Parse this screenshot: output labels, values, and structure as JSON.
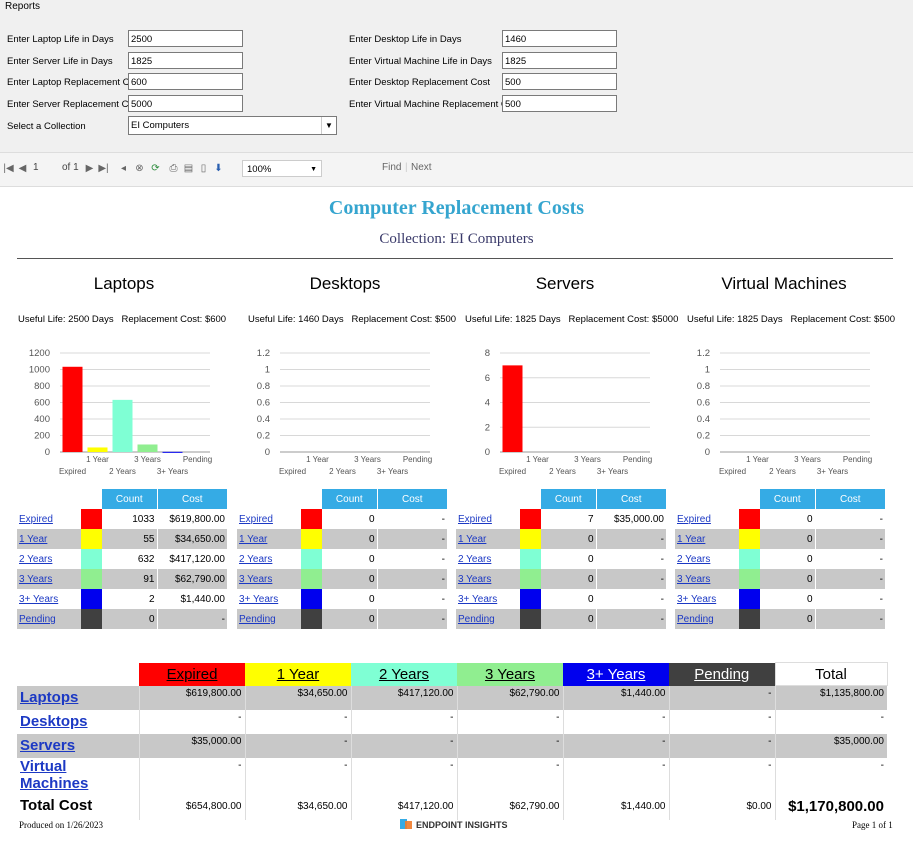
{
  "window": {
    "title": "Reports"
  },
  "params": {
    "laptop_life_label": "Enter Laptop Life in Days",
    "laptop_life_value": "2500",
    "server_life_label": "Enter Server Life in Days",
    "server_life_value": "1825",
    "laptop_cost_label": "Enter Laptop Replacement Cost",
    "laptop_cost_value": "600",
    "server_cost_label": "Enter Server Replacement Cost",
    "server_cost_value": "5000",
    "collection_label": "Select a Collection",
    "collection_value": "EI Computers",
    "desktop_life_label": "Enter Desktop Life in Days",
    "desktop_life_value": "1460",
    "vm_life_label": "Enter Virtual Machine Life in Days",
    "vm_life_value": "1825",
    "desktop_cost_label": "Enter Desktop Replacement Cost",
    "desktop_cost_value": "500",
    "vm_cost_label": "Enter Virtual Machine Replacement Cost",
    "vm_cost_value": "500"
  },
  "toolbar": {
    "page": "1",
    "of_label": "of 1",
    "zoom": "100%",
    "find": "Find",
    "next": "Next"
  },
  "report": {
    "title": "Computer Replacement Costs",
    "subtitle": "Collection: EI Computers",
    "count_header": "Count",
    "cost_header": "Cost",
    "footer_date": "Produced on 1/26/2023",
    "footer_brand": "ENDPOINT INSIGHTS",
    "footer_page": "Page 1 of 1"
  },
  "colors": {
    "Expired": "#ff0000",
    "1 Year": "#ffff00",
    "2 Years": "#7fffd4",
    "3 Years": "#90ee90",
    "3+ Years": "#0000ee",
    "Pending": "#404040",
    "header_blue": "#35abe5",
    "title_blue": "#35a5cf"
  },
  "panels": [
    {
      "name": "Laptops",
      "life": "Useful Life: 2500 Days",
      "cost": "Replacement Cost: $600",
      "rows": [
        {
          "label": "Expired",
          "count": "1033",
          "cost": "$619,800.00"
        },
        {
          "label": "1 Year",
          "count": "55",
          "cost": "$34,650.00"
        },
        {
          "label": "2 Years",
          "count": "632",
          "cost": "$417,120.00"
        },
        {
          "label": "3 Years",
          "count": "91",
          "cost": "$62,790.00"
        },
        {
          "label": "3+ Years",
          "count": "2",
          "cost": "$1,440.00"
        },
        {
          "label": "Pending",
          "count": "0",
          "cost": "-"
        }
      ]
    },
    {
      "name": "Desktops",
      "life": "Useful Life: 1460 Days",
      "cost": "Replacement Cost: $500",
      "rows": [
        {
          "label": "Expired",
          "count": "0",
          "cost": "-"
        },
        {
          "label": "1 Year",
          "count": "0",
          "cost": "-"
        },
        {
          "label": "2 Years",
          "count": "0",
          "cost": "-"
        },
        {
          "label": "3 Years",
          "count": "0",
          "cost": "-"
        },
        {
          "label": "3+ Years",
          "count": "0",
          "cost": "-"
        },
        {
          "label": "Pending",
          "count": "0",
          "cost": "-"
        }
      ]
    },
    {
      "name": "Servers",
      "life": "Useful Life: 1825 Days",
      "cost": "Replacement Cost: $5000",
      "rows": [
        {
          "label": "Expired",
          "count": "7",
          "cost": "$35,000.00"
        },
        {
          "label": "1 Year",
          "count": "0",
          "cost": "-"
        },
        {
          "label": "2 Years",
          "count": "0",
          "cost": "-"
        },
        {
          "label": "3 Years",
          "count": "0",
          "cost": "-"
        },
        {
          "label": "3+ Years",
          "count": "0",
          "cost": "-"
        },
        {
          "label": "Pending",
          "count": "0",
          "cost": "-"
        }
      ]
    },
    {
      "name": "Virtual Machines",
      "life": "Useful Life: 1825 Days",
      "cost": "Replacement Cost: $500",
      "rows": [
        {
          "label": "Expired",
          "count": "0",
          "cost": "-"
        },
        {
          "label": "1 Year",
          "count": "0",
          "cost": "-"
        },
        {
          "label": "2 Years",
          "count": "0",
          "cost": "-"
        },
        {
          "label": "3 Years",
          "count": "0",
          "cost": "-"
        },
        {
          "label": "3+ Years",
          "count": "0",
          "cost": "-"
        },
        {
          "label": "Pending",
          "count": "0",
          "cost": "-"
        }
      ]
    }
  ],
  "chart_data": [
    {
      "type": "bar",
      "title": "Laptops",
      "categories": [
        "Expired",
        "1 Year",
        "2 Years",
        "3 Years",
        "3+ Years",
        "Pending"
      ],
      "values": [
        1033,
        55,
        632,
        91,
        2,
        0
      ],
      "ylim": [
        0,
        1200
      ],
      "yticks": [
        "0",
        "200",
        "400",
        "600",
        "800",
        "1000",
        "1200"
      ],
      "grid": true
    },
    {
      "type": "bar",
      "title": "Desktops",
      "categories": [
        "Expired",
        "1 Year",
        "2 Years",
        "3 Years",
        "3+ Years",
        "Pending"
      ],
      "values": [
        0,
        0,
        0,
        0,
        0,
        0
      ],
      "ylim": [
        0,
        1.2
      ],
      "yticks": [
        "0",
        "0.2",
        "0.4",
        "0.6",
        "0.8",
        "1",
        "1.2"
      ],
      "grid": true
    },
    {
      "type": "bar",
      "title": "Servers",
      "categories": [
        "Expired",
        "1 Year",
        "2 Years",
        "3 Years",
        "3+ Years",
        "Pending"
      ],
      "values": [
        7,
        0,
        0,
        0,
        0,
        0
      ],
      "ylim": [
        0,
        8
      ],
      "yticks": [
        "0",
        "2",
        "4",
        "6",
        "8"
      ],
      "grid": true
    },
    {
      "type": "bar",
      "title": "Virtual Machines",
      "categories": [
        "Expired",
        "1 Year",
        "2 Years",
        "3 Years",
        "3+ Years",
        "Pending"
      ],
      "values": [
        0,
        0,
        0,
        0,
        0,
        0
      ],
      "ylim": [
        0,
        1.2
      ],
      "yticks": [
        "0",
        "0.2",
        "0.4",
        "0.6",
        "0.8",
        "1",
        "1.2"
      ],
      "grid": true
    }
  ],
  "summary": {
    "headers": [
      "Expired",
      "1 Year",
      "2 Years",
      "3 Years",
      "3+ Years",
      "Pending",
      "Total"
    ],
    "rows": [
      {
        "label": "Laptops",
        "values": [
          "$619,800.00",
          "$34,650.00",
          "$417,120.00",
          "$62,790.00",
          "$1,440.00",
          "-",
          "$1,135,800.00"
        ]
      },
      {
        "label": "Desktops",
        "values": [
          "-",
          "-",
          "-",
          "-",
          "-",
          "-",
          "-"
        ]
      },
      {
        "label": "Servers",
        "values": [
          "$35,000.00",
          "-",
          "-",
          "-",
          "-",
          "-",
          "$35,000.00"
        ]
      },
      {
        "label": "Virtual Machines",
        "values": [
          "-",
          "-",
          "-",
          "-",
          "-",
          "-",
          "-"
        ]
      }
    ],
    "total_label": "Total Cost",
    "totals": [
      "$654,800.00",
      "$34,650.00",
      "$417,120.00",
      "$62,790.00",
      "$1,440.00",
      "$0.00",
      "$1,170,800.00"
    ]
  }
}
